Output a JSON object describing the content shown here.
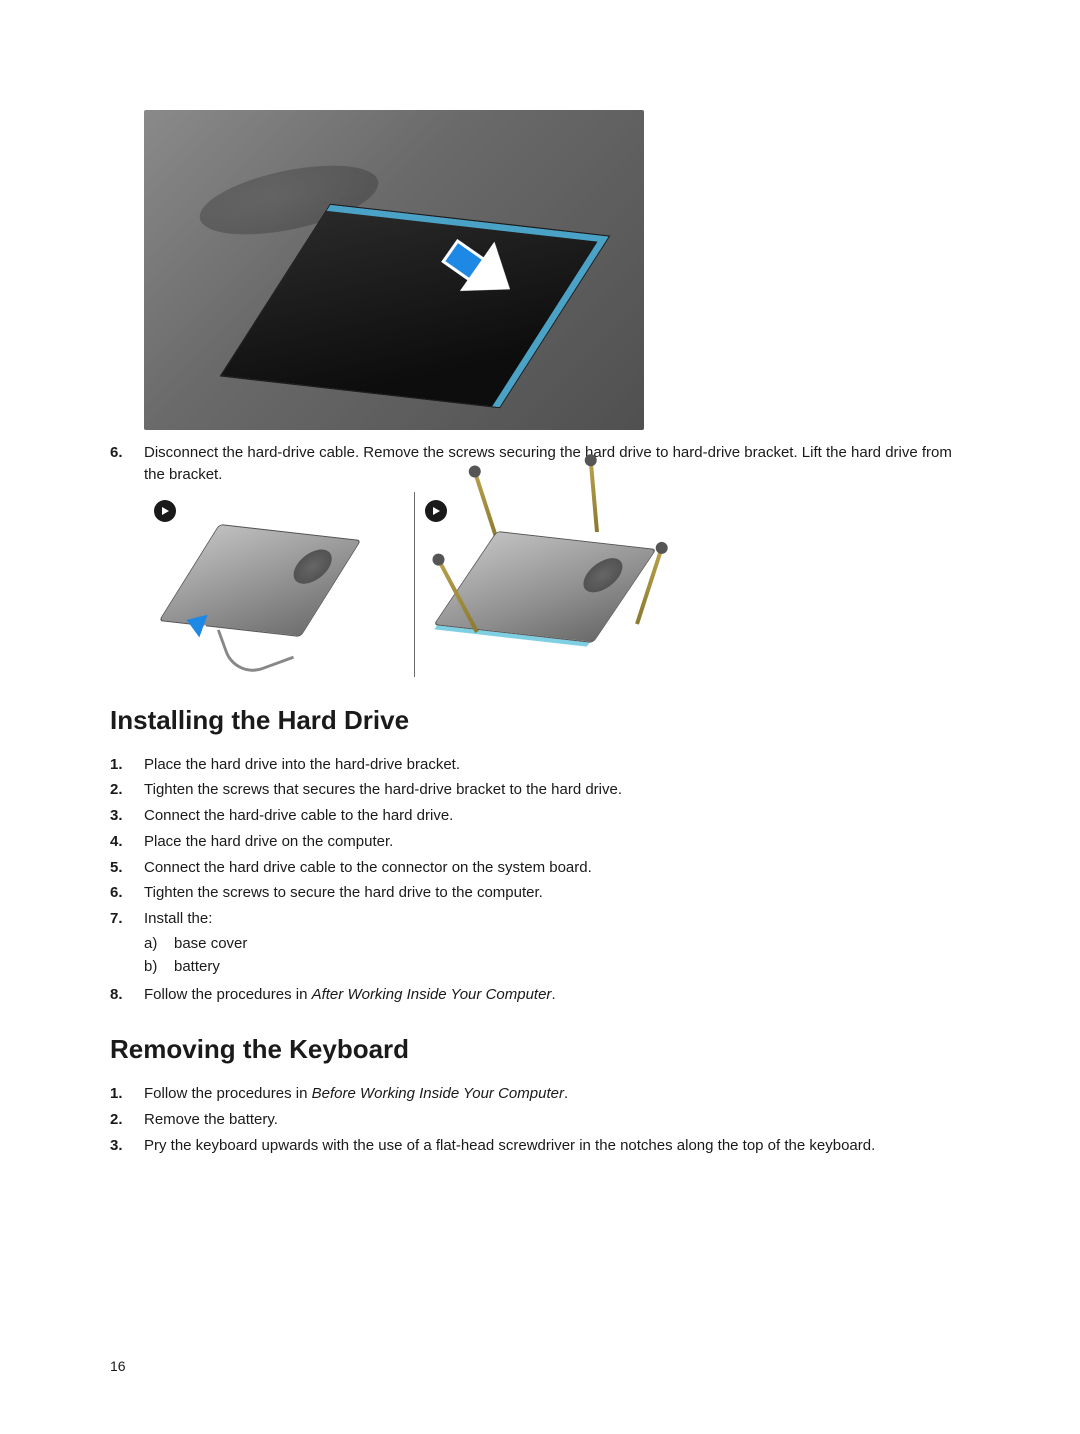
{
  "page_number": "16",
  "colors": {
    "text": "#1a1a1a",
    "background": "#ffffff",
    "arrow_fill": "#1e88e5",
    "arrow_border": "#ffffff",
    "badge_bg": "#1a1a1a",
    "screw_color": "#b8a04a",
    "hdd_gradient_light": "#c0c0c0",
    "hdd_gradient_dark": "#6a6a6a"
  },
  "typography": {
    "body_fontsize_pt": 11,
    "heading_fontsize_pt": 20,
    "heading_weight": "bold",
    "step_number_weight": "bold"
  },
  "figures": {
    "main": {
      "description": "Laptop internals showing hard drive being slid with blue arrow",
      "arrow_color": "#1e88e5",
      "arrow_border": "#ffffff",
      "arrow_direction_deg": 215
    },
    "sub": {
      "panels": [
        "a",
        "b"
      ],
      "panel_a_desc": "Hard drive with cable, blue arrow indicating disconnect direction",
      "panel_b_desc": "Hard drive bracket with four mounting screws",
      "screw_count": 4,
      "divider_color": "#6a6a6a"
    }
  },
  "preceding_step": {
    "number": "6.",
    "text": "Disconnect the hard-drive cable. Remove the screws securing the hard drive to hard-drive bracket. Lift the hard drive from the bracket."
  },
  "sections": [
    {
      "heading": "Installing the Hard Drive",
      "steps": [
        {
          "n": "1.",
          "text": "Place the hard drive into the hard-drive bracket."
        },
        {
          "n": "2.",
          "text": "Tighten the screws that secures the hard-drive bracket to the hard drive."
        },
        {
          "n": "3.",
          "text": "Connect the hard-drive cable to the hard drive."
        },
        {
          "n": "4.",
          "text": "Place the hard drive on the computer."
        },
        {
          "n": "5.",
          "text": "Connect the hard drive cable to the connector on the system board."
        },
        {
          "n": "6.",
          "text": "Tighten the screws to secure the hard drive to the computer."
        },
        {
          "n": "7.",
          "text": "Install the:",
          "subitems": [
            {
              "l": "a)",
              "text": "base cover"
            },
            {
              "l": "b)",
              "text": "battery"
            }
          ]
        },
        {
          "n": "8.",
          "prefix": "Follow the procedures in ",
          "italic": "After Working Inside Your Computer",
          "suffix": "."
        }
      ]
    },
    {
      "heading": "Removing the Keyboard",
      "steps": [
        {
          "n": "1.",
          "prefix": "Follow the procedures in ",
          "italic": "Before Working Inside Your Computer",
          "suffix": "."
        },
        {
          "n": "2.",
          "text": "Remove the battery."
        },
        {
          "n": "3.",
          "text": "Pry the keyboard upwards with the use of a flat-head screwdriver in the notches along the top of the keyboard."
        }
      ]
    }
  ]
}
